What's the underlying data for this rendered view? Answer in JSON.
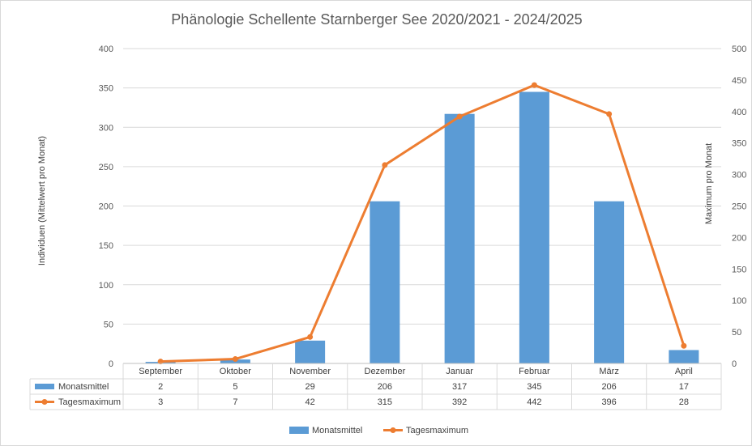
{
  "chart_data": {
    "type": "bar",
    "title": "Phänologie Schellente Starnberger See 2020/2021 - 2024/2025",
    "categories": [
      "September",
      "Oktober",
      "November",
      "Dezember",
      "Januar",
      "Februar",
      "März",
      "April"
    ],
    "series": [
      {
        "name": "Monatsmittel",
        "type": "bar",
        "axis": "left",
        "color": "#5b9bd5",
        "values": [
          2,
          5,
          29,
          206,
          317,
          345,
          206,
          17
        ],
        "labels": [
          "2",
          "5",
          "29",
          "206",
          "317",
          "345",
          "206",
          "17"
        ]
      },
      {
        "name": "Tagesmaximum",
        "type": "line",
        "axis": "right",
        "color": "#ed7d31",
        "values": [
          3,
          7,
          42,
          315,
          392,
          442,
          396,
          28
        ],
        "labels": [
          "3",
          "7",
          "42",
          "315",
          "392",
          "442",
          "396",
          "28"
        ]
      }
    ],
    "ylabel": "Individuen (Mittelwert pro Monat)",
    "y2label": "Maximum pro Monat",
    "ylim": [
      0,
      400
    ],
    "y2lim": [
      0,
      500
    ],
    "yticks": [
      "0",
      "50",
      "100",
      "150",
      "200",
      "250",
      "300",
      "350",
      "400"
    ],
    "y2ticks": [
      "0",
      "50",
      "100",
      "150",
      "200",
      "250",
      "300",
      "350",
      "400",
      "450",
      "500"
    ],
    "grid": true,
    "data_table": true,
    "legend": "bottom"
  }
}
